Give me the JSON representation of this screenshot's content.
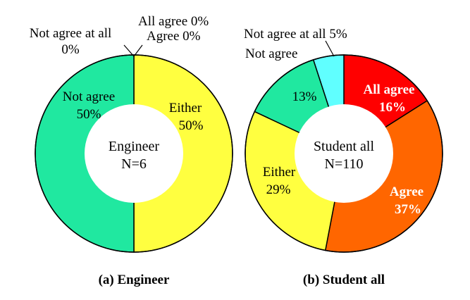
{
  "chart_data": [
    {
      "type": "pie",
      "title": "(a) Engineer",
      "center_label": "Engineer",
      "center_n": "N=6",
      "categories": [
        "All agree",
        "Agree",
        "Either",
        "Not agree",
        "Not agree at all"
      ],
      "values": [
        0,
        0,
        50,
        50,
        0
      ],
      "value_labels": [
        "0%",
        "0%",
        "50%",
        "50%",
        "0%"
      ],
      "colors": [
        "#ff0000",
        "#ff6600",
        "#ffff40",
        "#20e8a0",
        "#60ffff"
      ],
      "labels": {
        "all_agree": "All agree 0%",
        "agree": "Agree 0%",
        "either_name": "Either",
        "either_value": "50%",
        "not_agree_name": "Not agree",
        "not_agree_value": "50%",
        "not_agree_at_all_name": "Not agree at all",
        "not_agree_at_all_value": "0%"
      }
    },
    {
      "type": "pie",
      "title": "(b) Student all",
      "center_label": "Student all",
      "center_n": "N=110",
      "categories": [
        "All agree",
        "Agree",
        "Either",
        "Not agree",
        "Not agree at all"
      ],
      "values": [
        16,
        37,
        29,
        13,
        5
      ],
      "value_labels": [
        "16%",
        "37%",
        "29%",
        "13%",
        "5%"
      ],
      "colors": [
        "#ff0000",
        "#ff6600",
        "#ffff40",
        "#20e8a0",
        "#60ffff"
      ],
      "labels": {
        "all_agree_name": "All agree",
        "all_agree_value": "16%",
        "agree_name": "Agree",
        "agree_value": "37%",
        "either_name": "Either",
        "either_value": "29%",
        "not_agree_name": "Not agree",
        "not_agree_value": "13%",
        "not_agree_at_all": "Not agree at all 5%"
      }
    }
  ]
}
